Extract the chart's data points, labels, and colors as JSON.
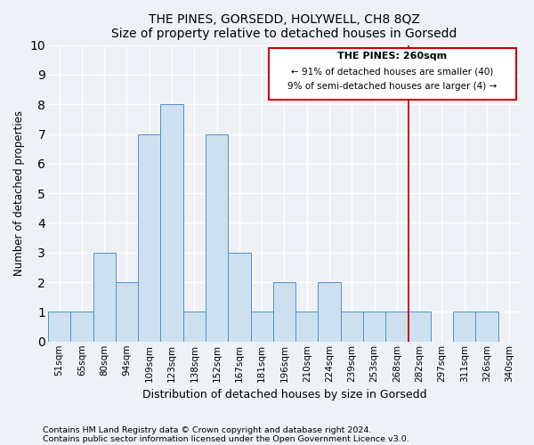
{
  "title": "THE PINES, GORSEDD, HOLYWELL, CH8 8QZ",
  "subtitle": "Size of property relative to detached houses in Gorsedd",
  "xlabel": "Distribution of detached houses by size in Gorsedd",
  "ylabel": "Number of detached properties",
  "bar_labels": [
    "51sqm",
    "65sqm",
    "80sqm",
    "94sqm",
    "109sqm",
    "123sqm",
    "138sqm",
    "152sqm",
    "167sqm",
    "181sqm",
    "196sqm",
    "210sqm",
    "224sqm",
    "239sqm",
    "253sqm",
    "268sqm",
    "282sqm",
    "297sqm",
    "311sqm",
    "326sqm",
    "340sqm"
  ],
  "bar_values": [
    1,
    1,
    3,
    2,
    7,
    8,
    1,
    7,
    3,
    1,
    2,
    1,
    2,
    1,
    1,
    1,
    1,
    0,
    1,
    1,
    0
  ],
  "bar_color": "#cce0f0",
  "bar_edge_color": "#5590c8",
  "vline_color": "#cc0000",
  "annotation_title": "THE PINES: 260sqm",
  "annotation_line1": "← 91% of detached houses are smaller (40)",
  "annotation_line2": "9% of semi-detached houses are larger (4) →",
  "annotation_box_color": "#cc0000",
  "ylim": [
    0,
    10
  ],
  "yticks": [
    0,
    1,
    2,
    3,
    4,
    5,
    6,
    7,
    8,
    9,
    10
  ],
  "footnote1": "Contains HM Land Registry data © Crown copyright and database right 2024.",
  "footnote2": "Contains public sector information licensed under the Open Government Licence v3.0.",
  "bg_color": "#eef2f7",
  "grid_color": "#ffffff"
}
